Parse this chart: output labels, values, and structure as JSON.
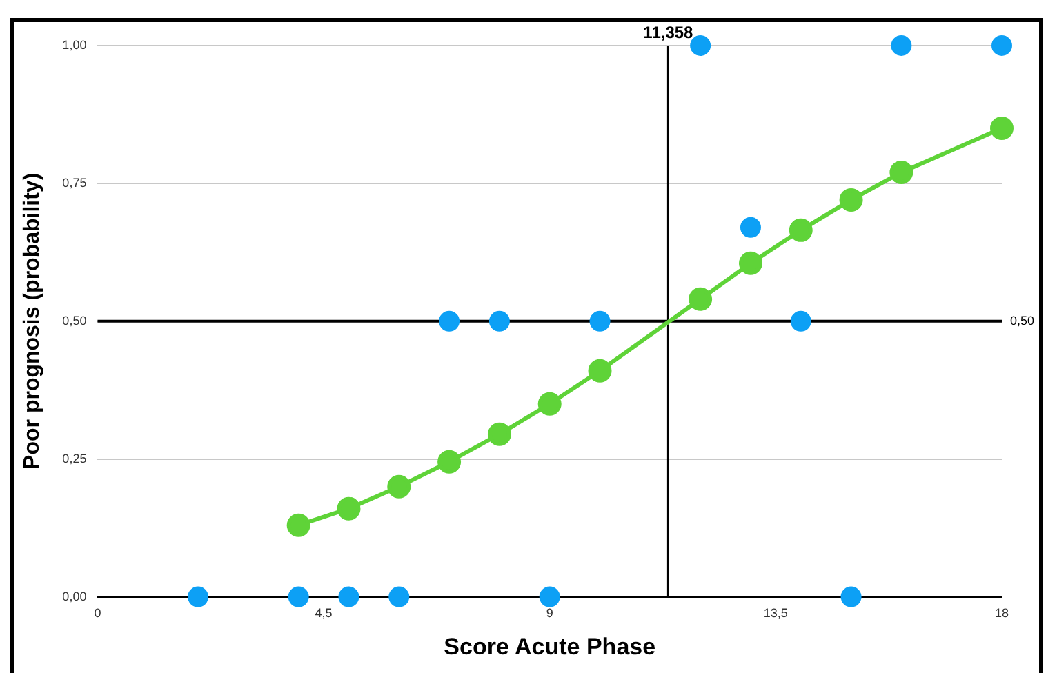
{
  "chart_data": {
    "type": "scatter",
    "xlabel": "Score Acute Phase",
    "ylabel": "Poor prognosis (probability)",
    "xlim": [
      0,
      18
    ],
    "xticks": [
      0,
      {
        "value": 4.5,
        "label": "4,5"
      },
      9,
      {
        "value": 13.5,
        "label": "13,5"
      },
      18
    ],
    "ylim": [
      0,
      1
    ],
    "yticks": [
      {
        "value": 0,
        "label": "0,00"
      },
      {
        "value": 0.25,
        "label": "0,25"
      },
      {
        "value": 0.5,
        "label": "0,50"
      },
      {
        "value": 0.75,
        "label": "0,75"
      },
      {
        "value": 1,
        "label": "1,00"
      }
    ],
    "grid": "y",
    "legend": false,
    "marker": "circle",
    "series": [
      {
        "type": "scatter",
        "color": "#0da0f5",
        "x": [
          2,
          4,
          5,
          6,
          9,
          15,
          7,
          8,
          10,
          14,
          12,
          16,
          18,
          13
        ],
        "values": [
          0,
          0,
          0,
          0,
          0,
          0,
          0.5,
          0.5,
          0.5,
          0.5,
          1,
          1,
          1,
          0.67
        ]
      },
      {
        "type": "line",
        "color": "#5fd338",
        "x": [
          4,
          5,
          6,
          7,
          8,
          9,
          10,
          12,
          13,
          14,
          15,
          16,
          18
        ],
        "values": [
          0.13,
          0.16,
          0.2,
          0.245,
          0.295,
          0.35,
          0.41,
          0.54,
          0.605,
          0.665,
          0.72,
          0.77,
          0.85
        ]
      }
    ],
    "ref_lines": [
      {
        "axis": "x",
        "value": 11.358,
        "label": "11,358",
        "color": "#000000"
      },
      {
        "axis": "y",
        "value": 0.5,
        "label": "0,50",
        "color": "#000000"
      }
    ]
  }
}
